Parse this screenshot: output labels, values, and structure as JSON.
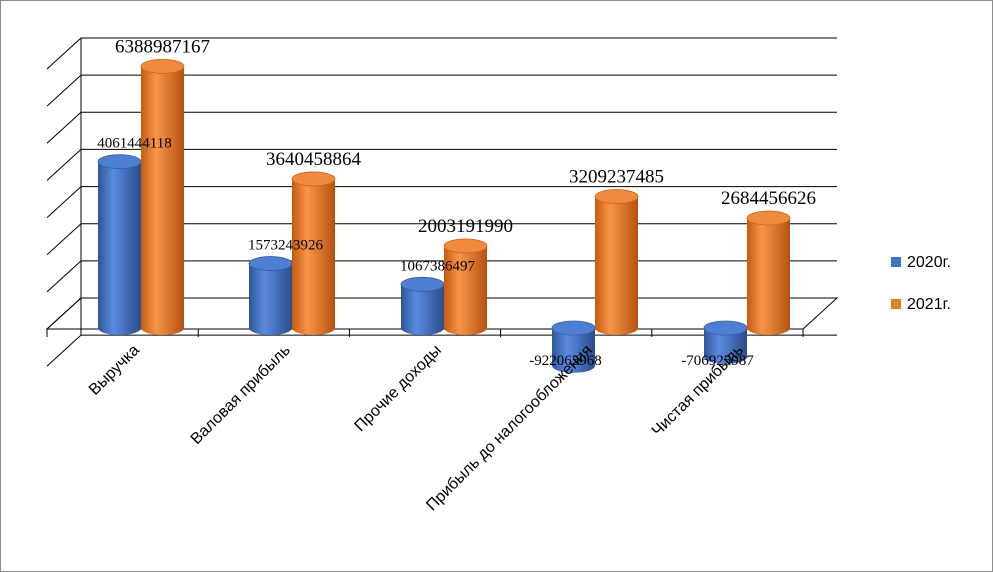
{
  "chart_data": {
    "type": "bar",
    "style": "3d-cylinder",
    "categories": [
      "Выручка",
      "Валовая прибыль",
      "Прочие доходы",
      "Прибыль до налогообложения",
      "Чистая прибыль"
    ],
    "series": [
      {
        "name": "2020г.",
        "color": "#4472c4",
        "values": [
          4061444118,
          1573243926,
          1067386497,
          -922065968,
          -706925987
        ],
        "labels": [
          "4061444118",
          "1573243926",
          "1067386497",
          "-922065968",
          "-706925987"
        ]
      },
      {
        "name": "2021г.",
        "color": "#ed7d31",
        "values": [
          6388987167,
          3640458864,
          2003191990,
          3209237485,
          2684456626
        ],
        "labels": [
          "6388987167",
          "3640458864",
          "2003191990",
          "3209237485",
          "2684456626"
        ]
      }
    ],
    "title": "",
    "xlabel": "",
    "ylabel": "",
    "ylim": [
      -1000000000,
      7000000000
    ],
    "grid": true,
    "legend": "right"
  }
}
